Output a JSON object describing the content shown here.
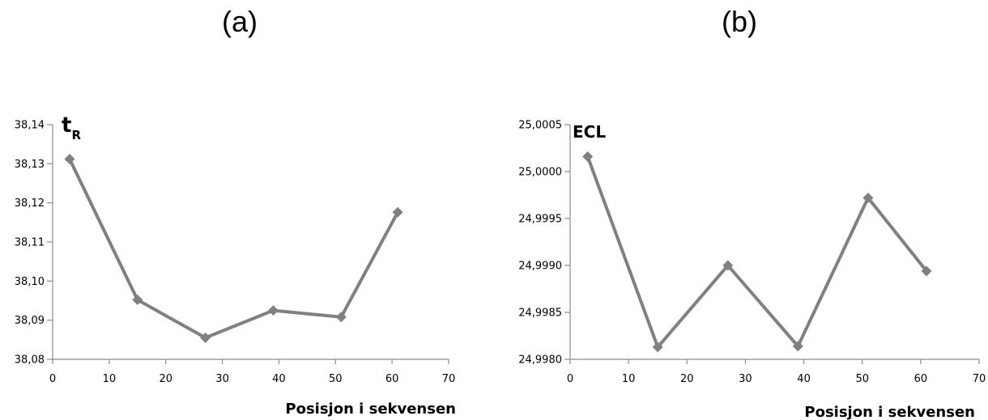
{
  "panels": {
    "a": {
      "label": "(a)"
    },
    "b": {
      "label": "(b)"
    }
  },
  "chart_data": [
    {
      "type": "line",
      "panel": "(a)",
      "ylabel_main": "t",
      "ylabel_sub": "R",
      "xlabel": "Posisjon i sekvensen",
      "xlim": [
        0,
        70
      ],
      "ylim": [
        38.08,
        38.14
      ],
      "x_ticks": [
        "0",
        "10",
        "20",
        "30",
        "40",
        "50",
        "60",
        "70"
      ],
      "y_ticks": [
        "38,08",
        "38,09",
        "38,10",
        "38,11",
        "38,12",
        "38,13",
        "38,14"
      ],
      "grid": false,
      "line_color": "#808080",
      "series": [
        {
          "x": [
            3,
            15,
            27,
            39,
            51,
            61
          ],
          "y": [
            38.1312,
            38.0952,
            38.0855,
            38.0925,
            38.0908,
            38.1176
          ]
        }
      ]
    },
    {
      "type": "line",
      "panel": "(b)",
      "ylabel_main": "ECL",
      "ylabel_sub": "",
      "xlabel": "Posisjon i sekvensen",
      "xlim": [
        0,
        70
      ],
      "ylim": [
        24.998,
        25.0005
      ],
      "x_ticks": [
        "0",
        "10",
        "20",
        "30",
        "40",
        "50",
        "60",
        "70"
      ],
      "y_ticks": [
        "24,9980",
        "24,9985",
        "24,9990",
        "24,9995",
        "25,0000",
        "25,0005"
      ],
      "grid": false,
      "line_color": "#808080",
      "series": [
        {
          "x": [
            3,
            15,
            27,
            39,
            51,
            61
          ],
          "y": [
            25.00016,
            24.99813,
            24.999,
            24.99814,
            24.99972,
            24.99894
          ]
        }
      ]
    }
  ]
}
